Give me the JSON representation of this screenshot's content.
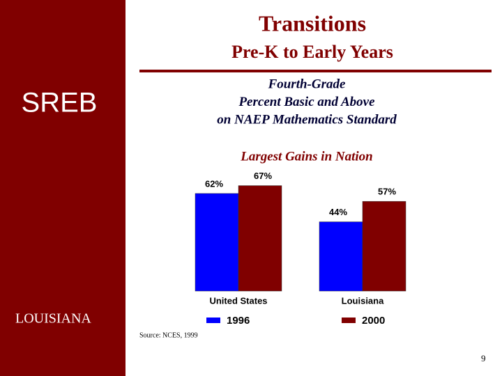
{
  "header": {
    "title": "Transitions",
    "subtitle": "Pre-K to Early Years"
  },
  "logo": "SREB",
  "state": "LOUISIANA",
  "source": "Source: NCES, 1999",
  "page_number": "9",
  "chart_data": {
    "type": "bar",
    "title": [
      "Fourth-Grade",
      "Percent Basic and Above",
      "on NAEP Mathematics Standard"
    ],
    "subtitle": "Largest Gains in Nation",
    "categories": [
      "United States",
      "Louisiana"
    ],
    "series": [
      {
        "name": "1996",
        "color": "#0000ff",
        "values": [
          62,
          44
        ],
        "value_labels": [
          "62%",
          "44%"
        ]
      },
      {
        "name": "2000",
        "color": "#800000",
        "values": [
          67,
          57
        ],
        "value_labels": [
          "67%",
          "57%"
        ]
      }
    ],
    "ylim": [
      0,
      100
    ]
  }
}
